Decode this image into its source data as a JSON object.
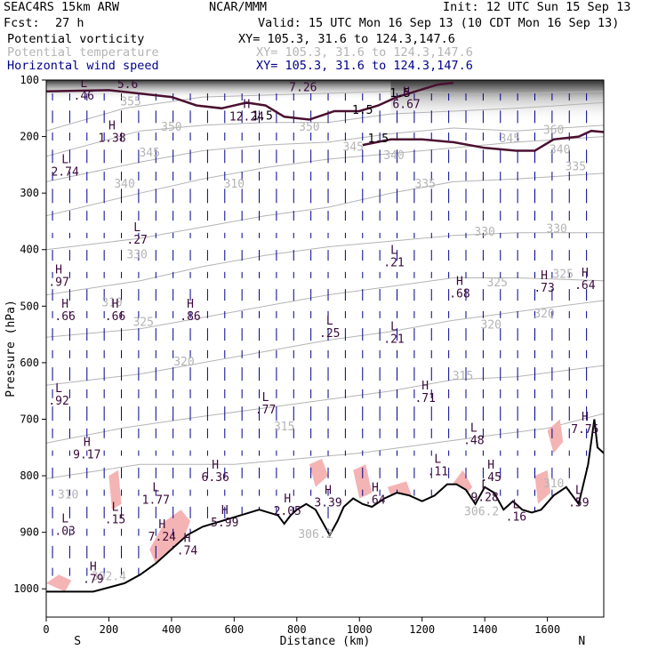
{
  "header": {
    "model": "SEAC4RS 15km ARW",
    "center": "NCAR/MMM",
    "init": "Init: 12 UTC Sun 15 Sep 13",
    "fcst_label": "Fcst:",
    "fcst_value": "27 h",
    "valid": "Valid: 15 UTC Mon 16 Sep 13 (10 CDT Mon 16 Sep 13)",
    "fields": [
      {
        "name": "Potential vorticity",
        "xy": "XY= 105.3, 31.6 to 124.3,147.6",
        "color": "#000000",
        "xy_color": "#000000"
      },
      {
        "name": "Potential temperature",
        "xy": "XY= 105.3, 31.6 to 124.3,147.6",
        "color": "#b4b4b4",
        "xy_color": "#b4b4b4"
      },
      {
        "name": "Horizontal wind speed",
        "xy": "XY= 105.3, 31.6 to 124.3,147.6",
        "color": "#00008b",
        "xy_color": "#00008b"
      }
    ]
  },
  "chart_data": {
    "type": "cross-section",
    "xlabel": "Distance (km)",
    "ylabel": "Pressure (hPa)",
    "xlim": [
      0,
      1780
    ],
    "ylim": [
      1050,
      100
    ],
    "x_ticks": [
      0,
      200,
      400,
      600,
      800,
      1000,
      1200,
      1400,
      1600
    ],
    "y_ticks": [
      100,
      200,
      300,
      400,
      500,
      600,
      700,
      800,
      900,
      1000
    ],
    "endpoint_labels": {
      "left": "S",
      "right": "N"
    },
    "colors": {
      "theta": "#b4b4b4",
      "pv_contour": "#4a1030",
      "pv_fill": "#f4b4b4",
      "wind": "#00008b",
      "terrain": "#000000",
      "shading_dark": "#202020"
    },
    "theta_isentropes": [
      {
        "value": 310,
        "points": [
          [
            0,
            805
          ],
          [
            300,
            780
          ],
          [
            600,
            780
          ],
          [
            800,
            770
          ],
          [
            1000,
            760
          ],
          [
            1200,
            745
          ],
          [
            1400,
            730
          ],
          [
            1600,
            716
          ],
          [
            1780,
            690
          ]
        ]
      },
      {
        "value": 315,
        "points": [
          [
            0,
            742
          ],
          [
            250,
            715
          ],
          [
            500,
            695
          ],
          [
            700,
            680
          ],
          [
            900,
            665
          ],
          [
            1100,
            650
          ],
          [
            1300,
            630
          ],
          [
            1500,
            625
          ],
          [
            1780,
            605
          ]
        ]
      },
      {
        "value": 320,
        "points": [
          [
            0,
            640
          ],
          [
            300,
            620
          ],
          [
            500,
            600
          ],
          [
            700,
            580
          ],
          [
            900,
            560
          ],
          [
            1100,
            545
          ],
          [
            1300,
            525
          ],
          [
            1500,
            510
          ],
          [
            1780,
            490
          ]
        ]
      },
      {
        "value": 325,
        "points": [
          [
            0,
            555
          ],
          [
            300,
            540
          ],
          [
            500,
            520
          ],
          [
            700,
            500
          ],
          [
            900,
            480
          ],
          [
            1100,
            465
          ],
          [
            1300,
            450
          ],
          [
            1500,
            450
          ],
          [
            1780,
            455
          ]
        ]
      },
      {
        "value": 330,
        "points": [
          [
            0,
            480
          ],
          [
            300,
            455
          ],
          [
            500,
            430
          ],
          [
            700,
            410
          ],
          [
            900,
            395
          ],
          [
            1100,
            385
          ],
          [
            1300,
            375
          ],
          [
            1500,
            370
          ],
          [
            1780,
            370
          ]
        ]
      },
      {
        "value": 335,
        "points": [
          [
            0,
            400
          ],
          [
            300,
            380
          ],
          [
            500,
            360
          ],
          [
            700,
            340
          ],
          [
            900,
            325
          ],
          [
            1100,
            300
          ],
          [
            1300,
            280
          ],
          [
            1500,
            275
          ],
          [
            1780,
            265
          ]
        ]
      },
      {
        "value": 340,
        "points": [
          [
            0,
            340
          ],
          [
            300,
            300
          ],
          [
            500,
            275
          ],
          [
            700,
            255
          ],
          [
            900,
            240
          ],
          [
            1100,
            230
          ],
          [
            1300,
            220
          ],
          [
            1500,
            210
          ],
          [
            1780,
            200
          ]
        ]
      },
      {
        "value": 345,
        "points": [
          [
            0,
            280
          ],
          [
            300,
            245
          ],
          [
            500,
            225
          ],
          [
            700,
            215
          ],
          [
            900,
            210
          ],
          [
            1100,
            195
          ],
          [
            1300,
            185
          ],
          [
            1500,
            190
          ],
          [
            1780,
            180
          ]
        ]
      },
      {
        "value": 350,
        "points": [
          [
            0,
            235
          ],
          [
            300,
            190
          ],
          [
            500,
            180
          ],
          [
            700,
            175
          ],
          [
            900,
            175
          ],
          [
            1100,
            160
          ],
          [
            1300,
            155
          ],
          [
            1500,
            150
          ],
          [
            1780,
            140
          ]
        ]
      },
      {
        "value": 355,
        "points": [
          [
            0,
            190
          ],
          [
            250,
            150
          ],
          [
            500,
            130
          ],
          [
            800,
            125
          ],
          [
            1100,
            120
          ],
          [
            1400,
            125
          ],
          [
            1780,
            120
          ]
        ]
      }
    ],
    "theta_labels": [
      {
        "text": "310",
        "x": 70,
        "p": 840
      },
      {
        "text": "315",
        "x": 760,
        "p": 720
      },
      {
        "text": "320",
        "x": 440,
        "p": 605
      },
      {
        "text": "325",
        "x": 310,
        "p": 535
      },
      {
        "text": "330",
        "x": 290,
        "p": 415
      },
      {
        "text": "335",
        "x": 1210,
        "p": 290
      },
      {
        "text": "340",
        "x": 250,
        "p": 290
      },
      {
        "text": "345",
        "x": 330,
        "p": 235
      },
      {
        "text": "350",
        "x": 400,
        "p": 190
      },
      {
        "text": "355",
        "x": 270,
        "p": 145
      },
      {
        "text": "350",
        "x": 840,
        "p": 190
      },
      {
        "text": "345",
        "x": 980,
        "p": 225
      },
      {
        "text": "340",
        "x": 1110,
        "p": 240
      },
      {
        "text": "330",
        "x": 1400,
        "p": 375
      },
      {
        "text": "325",
        "x": 1440,
        "p": 465
      },
      {
        "text": "320",
        "x": 1420,
        "p": 540
      },
      {
        "text": "315",
        "x": 1330,
        "p": 630
      },
      {
        "text": "320",
        "x": 1590,
        "p": 520
      },
      {
        "text": "330",
        "x": 1630,
        "p": 370
      },
      {
        "text": "335",
        "x": 1690,
        "p": 260
      },
      {
        "text": "340",
        "x": 1640,
        "p": 230
      },
      {
        "text": "345",
        "x": 1480,
        "p": 210
      },
      {
        "text": "360",
        "x": 1620,
        "p": 195
      },
      {
        "text": "325",
        "x": 1650,
        "p": 450
      },
      {
        "text": "310",
        "x": 1620,
        "p": 820
      },
      {
        "text": "306.2",
        "x": 1390,
        "p": 870
      },
      {
        "text": "306.2",
        "x": 860,
        "p": 910
      },
      {
        "text": "302.4",
        "x": 200,
        "p": 985
      },
      {
        "text": "310",
        "x": 210,
        "p": 500
      },
      {
        "text": "310",
        "x": 600,
        "p": 290
      }
    ],
    "pv_contour_labels": [
      {
        "text": "1.5",
        "x": 690,
        "p": 170
      },
      {
        "text": "1.5",
        "x": 1060,
        "p": 210
      },
      {
        "text": "1.5",
        "x": 1130,
        "p": 130
      },
      {
        "text": "1.5",
        "x": 1010,
        "p": 160
      }
    ],
    "extrema": [
      {
        "type": "L",
        "value": ".46",
        "x": 120,
        "p": 125
      },
      {
        "type": "H",
        "value": "1.38",
        "x": 210,
        "p": 200
      },
      {
        "type": "L",
        "value": "2.74",
        "x": 60,
        "p": 260
      },
      {
        "type": "H",
        "value": "12.24",
        "x": 640,
        "p": 162
      },
      {
        "type": "H",
        "value": "6.67",
        "x": 1150,
        "p": 140
      },
      {
        "type": "L",
        "value": ".27",
        "x": 290,
        "p": 380
      },
      {
        "type": "H",
        "value": ".97",
        "x": 40,
        "p": 455
      },
      {
        "type": "H",
        "value": ".66",
        "x": 60,
        "p": 515
      },
      {
        "type": "H",
        "value": ".66",
        "x": 220,
        "p": 515
      },
      {
        "type": "H",
        "value": ".86",
        "x": 460,
        "p": 515
      },
      {
        "type": "L",
        "value": ".21",
        "x": 1110,
        "p": 420
      },
      {
        "type": "L",
        "value": ".25",
        "x": 905,
        "p": 545
      },
      {
        "type": "L",
        "value": ".21",
        "x": 1110,
        "p": 555
      },
      {
        "type": "H",
        "value": ".68",
        "x": 1320,
        "p": 475
      },
      {
        "type": "H",
        "value": ".73",
        "x": 1590,
        "p": 465
      },
      {
        "type": "H",
        "value": ".64",
        "x": 1720,
        "p": 460
      },
      {
        "type": "L",
        "value": ".92",
        "x": 40,
        "p": 665
      },
      {
        "type": "L",
        "value": ".77",
        "x": 700,
        "p": 680
      },
      {
        "type": "H",
        "value": ".71",
        "x": 1210,
        "p": 660
      },
      {
        "type": "L",
        "value": ".48",
        "x": 1365,
        "p": 735
      },
      {
        "type": "H",
        "value": "7.75",
        "x": 1720,
        "p": 715
      },
      {
        "type": "H",
        "value": "9.17",
        "x": 130,
        "p": 760
      },
      {
        "type": "H",
        "value": "6.36",
        "x": 540,
        "p": 800
      },
      {
        "type": "L",
        "value": ".11",
        "x": 1250,
        "p": 790
      },
      {
        "type": "H",
        "value": ".45",
        "x": 1420,
        "p": 800
      },
      {
        "type": "L",
        "value": ".59",
        "x": 1700,
        "p": 845
      },
      {
        "type": "H",
        "value": "2.05",
        "x": 770,
        "p": 860
      },
      {
        "type": "H",
        "value": "3.39",
        "x": 900,
        "p": 845
      },
      {
        "type": "L",
        "value": "9.28",
        "x": 1400,
        "p": 835
      },
      {
        "type": "H",
        "value": ".64",
        "x": 1050,
        "p": 840
      },
      {
        "type": "L",
        "value": "1.77",
        "x": 350,
        "p": 840
      },
      {
        "type": "L",
        "value": ".15",
        "x": 220,
        "p": 875
      },
      {
        "type": "L",
        "value": ".03",
        "x": 60,
        "p": 895
      },
      {
        "type": "H",
        "value": "5.99",
        "x": 570,
        "p": 880
      },
      {
        "type": "H",
        "value": "7.24",
        "x": 370,
        "p": 905
      },
      {
        "type": "H",
        "value": ".74",
        "x": 450,
        "p": 930
      },
      {
        "type": "L",
        "value": ".16",
        "x": 1500,
        "p": 870
      },
      {
        "type": "H",
        "value": ".79",
        "x": 150,
        "p": 980
      },
      {
        "type": "H",
        "value": "5.6",
        "x": 260,
        "p": 105
      },
      {
        "type": "L",
        "value": "7.26",
        "x": 820,
        "p": 110
      }
    ],
    "terrain": [
      [
        0,
        1005
      ],
      [
        150,
        1005
      ],
      [
        250,
        990
      ],
      [
        300,
        975
      ],
      [
        350,
        955
      ],
      [
        400,
        930
      ],
      [
        450,
        905
      ],
      [
        500,
        890
      ],
      [
        560,
        880
      ],
      [
        620,
        870
      ],
      [
        680,
        860
      ],
      [
        740,
        870
      ],
      [
        760,
        885
      ],
      [
        780,
        870
      ],
      [
        800,
        860
      ],
      [
        830,
        850
      ],
      [
        860,
        860
      ],
      [
        880,
        880
      ],
      [
        905,
        905
      ],
      [
        930,
        880
      ],
      [
        950,
        855
      ],
      [
        980,
        840
      ],
      [
        1010,
        850
      ],
      [
        1040,
        855
      ],
      [
        1080,
        840
      ],
      [
        1120,
        830
      ],
      [
        1160,
        835
      ],
      [
        1200,
        845
      ],
      [
        1240,
        835
      ],
      [
        1280,
        815
      ],
      [
        1310,
        815
      ],
      [
        1340,
        825
      ],
      [
        1370,
        850
      ],
      [
        1400,
        820
      ],
      [
        1430,
        830
      ],
      [
        1460,
        860
      ],
      [
        1490,
        845
      ],
      [
        1520,
        860
      ],
      [
        1550,
        865
      ],
      [
        1580,
        860
      ],
      [
        1620,
        835
      ],
      [
        1660,
        820
      ],
      [
        1700,
        850
      ],
      [
        1730,
        780
      ],
      [
        1750,
        700
      ],
      [
        1760,
        750
      ],
      [
        1780,
        760
      ]
    ],
    "pv_1p5_contour_left": [
      [
        0,
        120
      ],
      [
        200,
        118
      ],
      [
        400,
        130
      ],
      [
        480,
        145
      ],
      [
        560,
        150
      ],
      [
        640,
        140
      ],
      [
        700,
        145
      ],
      [
        760,
        165
      ],
      [
        840,
        170
      ],
      [
        920,
        155
      ],
      [
        1000,
        155
      ],
      [
        1060,
        145
      ],
      [
        1120,
        130
      ],
      [
        1180,
        120
      ],
      [
        1250,
        108
      ],
      [
        1300,
        105
      ]
    ],
    "pv_1p5_contour_right": [
      [
        1010,
        215
      ],
      [
        1100,
        205
      ],
      [
        1200,
        205
      ],
      [
        1300,
        210
      ],
      [
        1400,
        220
      ],
      [
        1500,
        225
      ],
      [
        1560,
        225
      ],
      [
        1620,
        205
      ],
      [
        1700,
        200
      ],
      [
        1740,
        190
      ],
      [
        1780,
        192
      ]
    ],
    "wind_barbs_note": "downward-pointing arrows (northerly/southerly flow) with speed-dependent length"
  }
}
